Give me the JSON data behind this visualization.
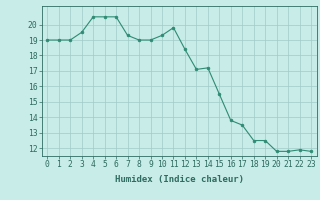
{
  "x": [
    0,
    1,
    2,
    3,
    4,
    5,
    6,
    7,
    8,
    9,
    10,
    11,
    12,
    13,
    14,
    15,
    16,
    17,
    18,
    19,
    20,
    21,
    22,
    23
  ],
  "y": [
    19,
    19,
    19,
    19.5,
    20.5,
    20.5,
    20.5,
    19.3,
    19,
    19,
    19.3,
    19.8,
    18.4,
    17.1,
    17.2,
    15.5,
    13.8,
    13.5,
    12.5,
    12.5,
    11.8,
    11.8,
    11.9,
    11.8
  ],
  "line_color": "#2e8b74",
  "marker_color": "#2e8b74",
  "bg_color": "#c8ece8",
  "grid_color": "#a0ccc8",
  "axis_color": "#2e6b60",
  "xlabel": "Humidex (Indice chaleur)",
  "ylim_min": 11.5,
  "ylim_max": 21.2,
  "yticks": [
    12,
    13,
    14,
    15,
    16,
    17,
    18,
    19,
    20
  ],
  "xticks": [
    0,
    1,
    2,
    3,
    4,
    5,
    6,
    7,
    8,
    9,
    10,
    11,
    12,
    13,
    14,
    15,
    16,
    17,
    18,
    19,
    20,
    21,
    22,
    23
  ],
  "label_fontsize": 6.5,
  "tick_fontsize": 5.8
}
